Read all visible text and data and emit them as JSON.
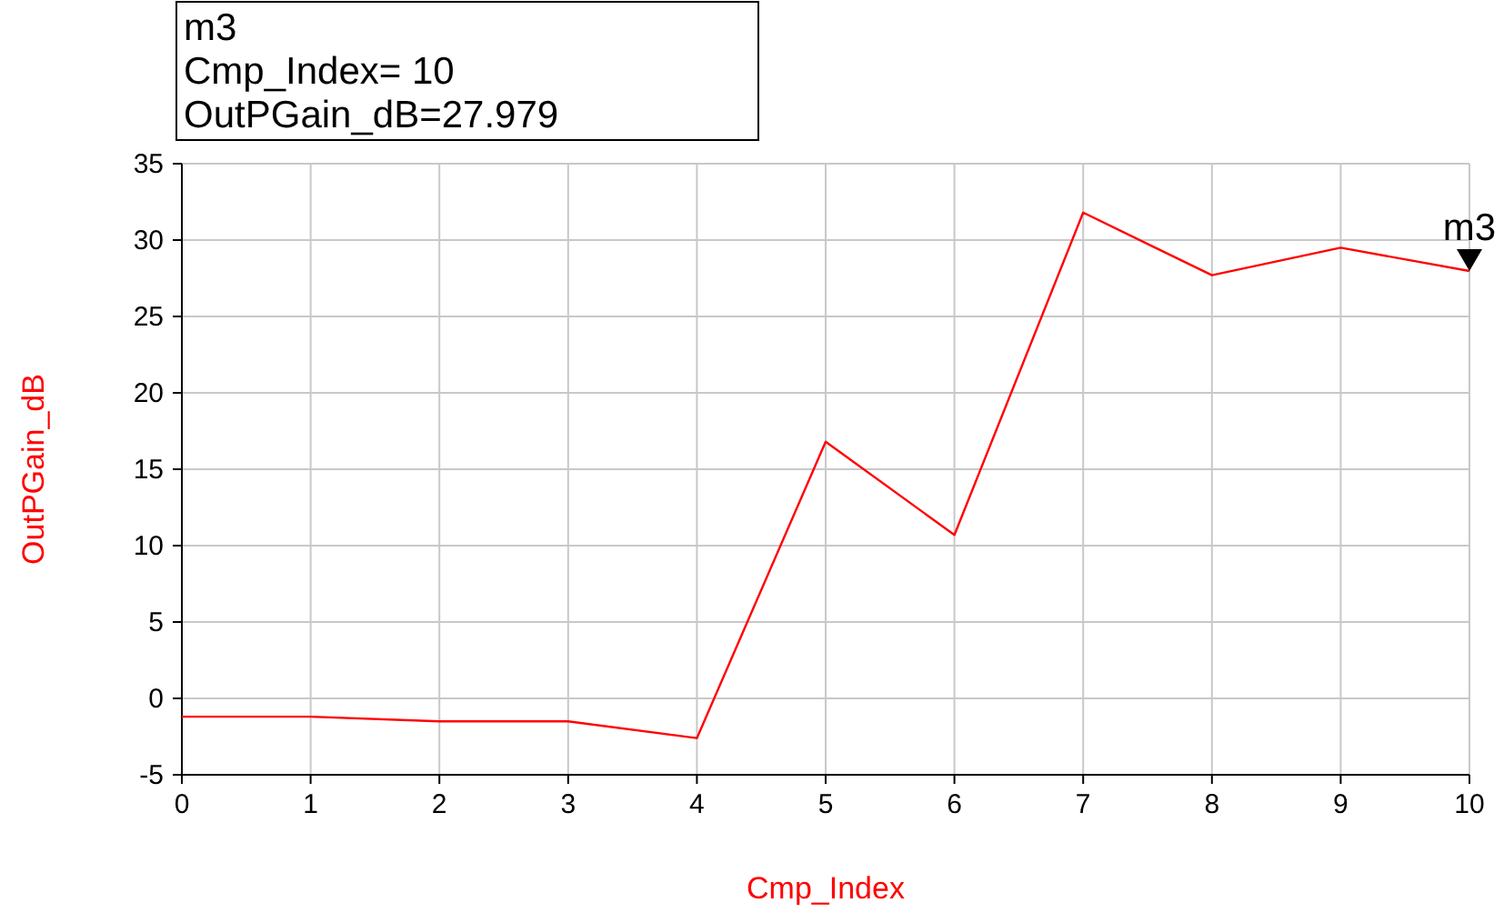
{
  "chart_data": {
    "type": "line",
    "xlabel": "Cmp_Index",
    "ylabel": "OutPGain_dB",
    "x": [
      0,
      1,
      2,
      3,
      4,
      5,
      6,
      7,
      8,
      9,
      10
    ],
    "series": [
      {
        "color": "#ff0000",
        "values": [
          -1.2,
          -1.2,
          -1.5,
          -1.5,
          -2.6,
          16.8,
          10.7,
          31.8,
          27.7,
          29.5,
          27.979
        ]
      }
    ],
    "xlim": [
      0,
      10
    ],
    "xticks": [
      0,
      1,
      2,
      3,
      4,
      5,
      6,
      7,
      8,
      9,
      10
    ],
    "ylim": [
      -5,
      35
    ],
    "yticks": [
      -5,
      0,
      5,
      10,
      15,
      20,
      25,
      30,
      35
    ],
    "grid": true,
    "marker": "none",
    "line_style": "solid",
    "annotations": [
      "m3\nCmp_Index= 10\nOutPGain_dB=27.979",
      {
        "text": "m3",
        "x": 10,
        "y": 27.979
      }
    ]
  }
}
